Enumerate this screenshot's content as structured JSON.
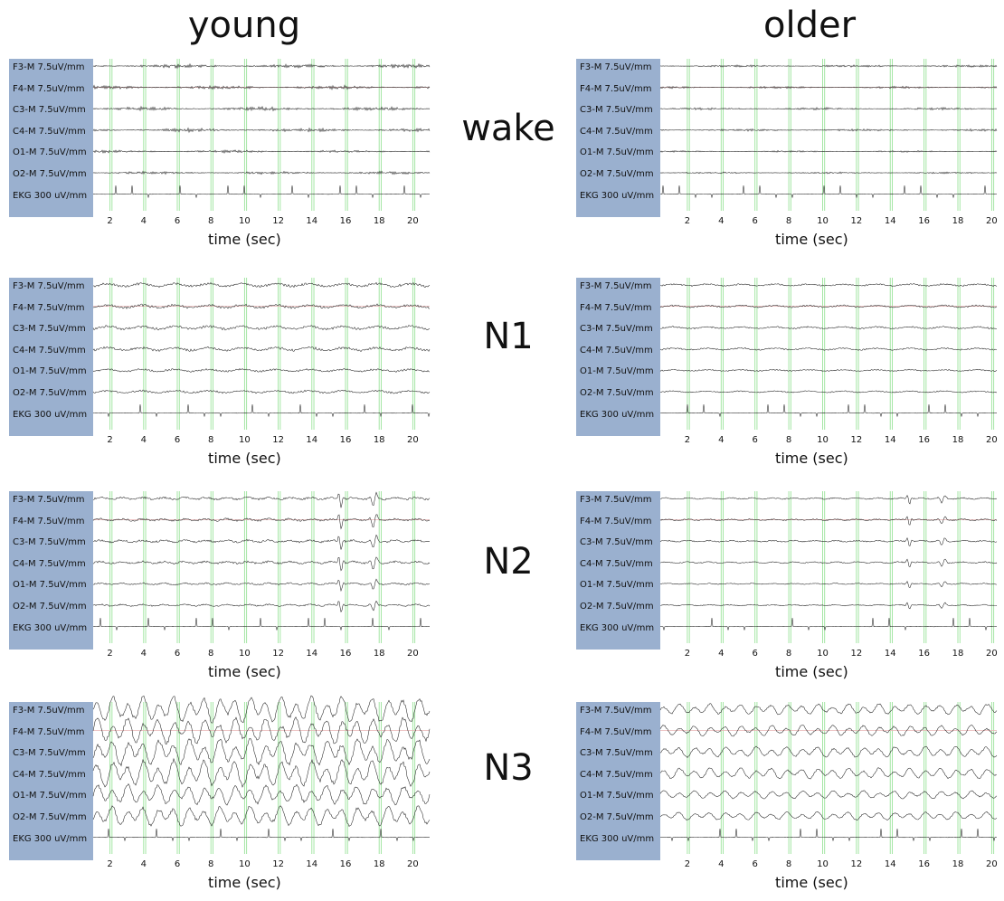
{
  "titles": {
    "left": "young",
    "right": "older"
  },
  "stages": [
    "wake",
    "N1",
    "N2",
    "N3"
  ],
  "chart_data": [
    {
      "type": "line",
      "group": "young",
      "stage": "wake",
      "xlabel": "time (sec)",
      "xticks": [
        2,
        4,
        6,
        8,
        10,
        12,
        14,
        16,
        18,
        20
      ],
      "xlim": [
        1,
        21
      ],
      "channels": [
        "F3-M 7.5uV/mm",
        "F4-M 7.5uV/mm",
        "C3-M 7.5uV/mm",
        "C4-M 7.5uV/mm",
        "O1-M 7.5uV/mm",
        "O2-M 7.5uV/mm",
        "EKG 300 uV/mm"
      ]
    },
    {
      "type": "line",
      "group": "older",
      "stage": "wake",
      "xlabel": "time (sec)",
      "xticks": [
        2,
        4,
        6,
        8,
        10,
        12,
        14,
        16,
        18,
        20
      ],
      "xlim": [
        0.4,
        20.3
      ],
      "channels": [
        "F3-M 7.5uV/mm",
        "F4-M 7.5uV/mm",
        "C3-M 7.5uV/mm",
        "C4-M 7.5uV/mm",
        "O1-M 7.5uV/mm",
        "O2-M 7.5uV/mm",
        "EKG 300 uV/mm"
      ]
    },
    {
      "type": "line",
      "group": "young",
      "stage": "N1",
      "xlabel": "time (sec)",
      "xticks": [
        2,
        4,
        6,
        8,
        10,
        12,
        14,
        16,
        18,
        20
      ],
      "xlim": [
        1,
        21
      ],
      "channels": [
        "F3-M 7.5uV/mm",
        "F4-M 7.5uV/mm",
        "C3-M 7.5uV/mm",
        "C4-M 7.5uV/mm",
        "O1-M 7.5uV/mm",
        "O2-M 7.5uV/mm",
        "EKG 300 uV/mm"
      ]
    },
    {
      "type": "line",
      "group": "older",
      "stage": "N1",
      "xlabel": "time (sec)",
      "xticks": [
        2,
        4,
        6,
        8,
        10,
        12,
        14,
        16,
        18,
        20
      ],
      "xlim": [
        0.4,
        20.3
      ],
      "channels": [
        "F3-M 7.5uV/mm",
        "F4-M 7.5uV/mm",
        "C3-M 7.5uV/mm",
        "C4-M 7.5uV/mm",
        "O1-M 7.5uV/mm",
        "O2-M 7.5uV/mm",
        "EKG 300 uV/mm"
      ]
    },
    {
      "type": "line",
      "group": "young",
      "stage": "N2",
      "xlabel": "time (sec)",
      "xticks": [
        2,
        4,
        6,
        8,
        10,
        12,
        14,
        16,
        18,
        20
      ],
      "xlim": [
        1,
        21
      ],
      "channels": [
        "F3-M 7.5uV/mm",
        "F4-M 7.5uV/mm",
        "C3-M 7.5uV/mm",
        "C4-M 7.5uV/mm",
        "O1-M 7.5uV/mm",
        "O2-M 7.5uV/mm",
        "EKG 300 uV/mm"
      ]
    },
    {
      "type": "line",
      "group": "older",
      "stage": "N2",
      "xlabel": "time (sec)",
      "xticks": [
        2,
        4,
        6,
        8,
        10,
        12,
        14,
        16,
        18,
        20
      ],
      "xlim": [
        0.4,
        20.3
      ],
      "channels": [
        "F3-M 7.5uV/mm",
        "F4-M 7.5uV/mm",
        "C3-M 7.5uV/mm",
        "C4-M 7.5uV/mm",
        "O1-M 7.5uV/mm",
        "O2-M 7.5uV/mm",
        "EKG 300 uV/mm"
      ]
    },
    {
      "type": "line",
      "group": "young",
      "stage": "N3",
      "xlabel": "time (sec)",
      "xticks": [
        2,
        4,
        6,
        8,
        10,
        12,
        14,
        16,
        18,
        20
      ],
      "xlim": [
        1,
        21
      ],
      "channels": [
        "F3-M 7.5uV/mm",
        "F4-M 7.5uV/mm",
        "C3-M 7.5uV/mm",
        "C4-M 7.5uV/mm",
        "O1-M 7.5uV/mm",
        "O2-M 7.5uV/mm",
        "EKG 300 uV/mm"
      ]
    },
    {
      "type": "line",
      "group": "older",
      "stage": "N3",
      "xlabel": "time (sec)",
      "xticks": [
        2,
        4,
        6,
        8,
        10,
        12,
        14,
        16,
        18,
        20
      ],
      "xlim": [
        0.4,
        20.3
      ],
      "channels": [
        "F3-M 7.5uV/mm",
        "F4-M 7.5uV/mm",
        "C3-M 7.5uV/mm",
        "C4-M 7.5uV/mm",
        "O1-M 7.5uV/mm",
        "O2-M 7.5uV/mm",
        "EKG 300 uV/mm"
      ]
    }
  ],
  "colors": {
    "label_box": "#9ab0cf",
    "gridline": "#9be39b",
    "trace": "#222222",
    "baseline": "#e8b4b4"
  }
}
